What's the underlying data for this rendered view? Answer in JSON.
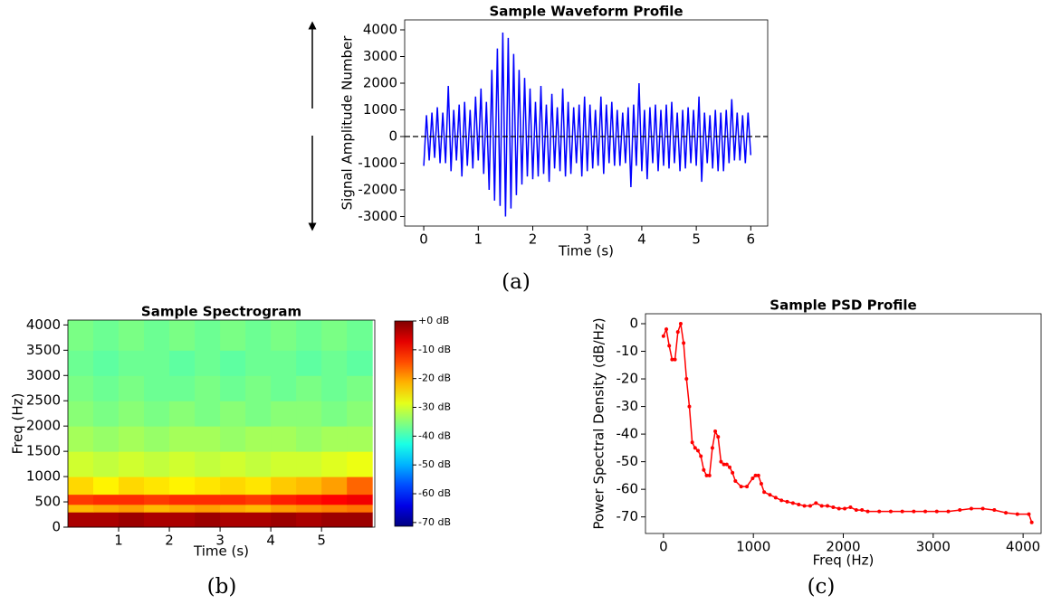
{
  "chart_data": [
    {
      "type": "line",
      "title": "Sample Waveform Profile",
      "xlabel": "Time (s)",
      "ylabel": "Signal Amplitude Number",
      "caption": "(a)",
      "color": "#0000ff",
      "reference_line": 0,
      "x": [
        0,
        0.05,
        0.1,
        0.15,
        0.2,
        0.25,
        0.3,
        0.35,
        0.4,
        0.45,
        0.5,
        0.55,
        0.6,
        0.65,
        0.7,
        0.75,
        0.8,
        0.85,
        0.9,
        0.95,
        1.0,
        1.05,
        1.1,
        1.15,
        1.2,
        1.25,
        1.3,
        1.35,
        1.4,
        1.45,
        1.5,
        1.55,
        1.6,
        1.65,
        1.7,
        1.75,
        1.8,
        1.85,
        1.9,
        1.95,
        2.0,
        2.05,
        2.1,
        2.15,
        2.2,
        2.25,
        2.3,
        2.35,
        2.4,
        2.45,
        2.5,
        2.55,
        2.6,
        2.65,
        2.7,
        2.75,
        2.8,
        2.85,
        2.9,
        2.95,
        3.0,
        3.05,
        3.1,
        3.15,
        3.2,
        3.25,
        3.3,
        3.35,
        3.4,
        3.45,
        3.5,
        3.55,
        3.6,
        3.65,
        3.7,
        3.75,
        3.8,
        3.85,
        3.9,
        3.95,
        4.0,
        4.05,
        4.1,
        4.15,
        4.2,
        4.25,
        4.3,
        4.35,
        4.4,
        4.45,
        4.5,
        4.55,
        4.6,
        4.65,
        4.7,
        4.75,
        4.8,
        4.85,
        4.9,
        4.95,
        5.0,
        5.05,
        5.1,
        5.15,
        5.2,
        5.25,
        5.3,
        5.35,
        5.4,
        5.45,
        5.5,
        5.55,
        5.6,
        5.65,
        5.7,
        5.75,
        5.8,
        5.85,
        5.9,
        5.95,
        6.0
      ],
      "values": [
        -1100,
        800,
        -900,
        900,
        -800,
        1100,
        -1000,
        900,
        -1000,
        1900,
        -1300,
        1000,
        -900,
        1200,
        -1500,
        1300,
        -1100,
        1000,
        -1200,
        1500,
        -900,
        1800,
        -1400,
        1300,
        -2000,
        2500,
        -2400,
        3300,
        -2600,
        3900,
        -3000,
        3700,
        -2700,
        3100,
        -2200,
        2500,
        -1800,
        2200,
        -1500,
        1800,
        -1600,
        1300,
        -1500,
        1900,
        -1400,
        1200,
        -1700,
        1600,
        -1200,
        1100,
        -1300,
        1800,
        -1500,
        1300,
        -1400,
        1100,
        -1000,
        1200,
        -1500,
        1500,
        -1300,
        1200,
        -1200,
        1000,
        -1100,
        1500,
        -1400,
        1200,
        -1000,
        1300,
        -1100,
        1000,
        -1100,
        900,
        -1000,
        1100,
        -1900,
        1200,
        -1100,
        2000,
        -1300,
        1000,
        -1600,
        1100,
        -1000,
        1200,
        -1300,
        1000,
        -1100,
        1200,
        -1200,
        1300,
        -1000,
        900,
        -1300,
        1000,
        -1200,
        1100,
        -1000,
        1000,
        -1100,
        1500,
        -1700,
        900,
        -1000,
        800,
        -1200,
        1000,
        -1300,
        900,
        -1300,
        1000,
        -1000,
        1400,
        -900,
        900,
        -900,
        800,
        -1000,
        900,
        -700
      ],
      "xlim": [
        -0.35,
        6.31
      ],
      "xticks": [
        0,
        1,
        2,
        3,
        4,
        5,
        6
      ],
      "ylim": [
        -3356,
        4373
      ],
      "yticks": [
        -3000,
        -2000,
        -1000,
        0,
        1000,
        2000,
        3000,
        4000
      ]
    },
    {
      "type": "heatmap",
      "title": "Sample Spectrogram",
      "xlabel": "Time (s)",
      "ylabel": "Freq (Hz)",
      "caption": "(b)",
      "x_bins": [
        0,
        0.5,
        1,
        1.5,
        2,
        2.5,
        3,
        3.5,
        4,
        4.5,
        5,
        5.5,
        6
      ],
      "y_bins": [
        0,
        300,
        450,
        650,
        1000,
        1500,
        2000,
        2500,
        3000,
        3500,
        4096
      ],
      "values": [
        [
          -3,
          -3,
          -2,
          -3,
          -3,
          -2,
          -3,
          -3,
          -2,
          -3,
          -2,
          -2
        ],
        [
          -22,
          -21,
          -20,
          -22,
          -21,
          -20,
          -21,
          -22,
          -20,
          -19,
          -18,
          -17
        ],
        [
          -13,
          -12,
          -12,
          -13,
          -12,
          -12,
          -12,
          -13,
          -11,
          -10,
          -9,
          -8
        ],
        [
          -24,
          -26,
          -24,
          -25,
          -26,
          -25,
          -24,
          -25,
          -23,
          -22,
          -20,
          -16
        ],
        [
          -30,
          -31,
          -30,
          -31,
          -30,
          -31,
          -30,
          -31,
          -30,
          -30,
          -29,
          -28
        ],
        [
          -33,
          -34,
          -33,
          -34,
          -33,
          -33,
          -34,
          -33,
          -33,
          -34,
          -33,
          -33
        ],
        [
          -35,
          -36,
          -35,
          -36,
          -35,
          -36,
          -35,
          -36,
          -35,
          -35,
          -36,
          -35
        ],
        [
          -36,
          -37,
          -36,
          -37,
          -37,
          -36,
          -37,
          -36,
          -37,
          -36,
          -37,
          -36
        ],
        [
          -37,
          -38,
          -37,
          -37,
          -38,
          -37,
          -38,
          -37,
          -37,
          -38,
          -37,
          -38
        ],
        [
          -36,
          -37,
          -36,
          -37,
          -36,
          -37,
          -36,
          -37,
          -36,
          -37,
          -36,
          -37
        ]
      ],
      "clim": [
        -71.3,
        0
      ],
      "colorbar_ticks": [
        {
          "value": 0,
          "label": "+0 dB"
        },
        {
          "value": -10,
          "label": "-10 dB"
        },
        {
          "value": -20,
          "label": "-20 dB"
        },
        {
          "value": -30,
          "label": "-30 dB"
        },
        {
          "value": -40,
          "label": "-40 dB"
        },
        {
          "value": -50,
          "label": "-50 dB"
        },
        {
          "value": -60,
          "label": "-60 dB"
        },
        {
          "value": -70,
          "label": "-70 dB"
        }
      ],
      "xlim": [
        0,
        6.05
      ],
      "xticks": [
        1,
        2,
        3,
        4,
        5
      ],
      "ylim": [
        0,
        4096
      ],
      "yticks": [
        0,
        500,
        1000,
        1500,
        2000,
        2500,
        3000,
        3500,
        4000
      ]
    },
    {
      "type": "line",
      "title": "Sample PSD Profile",
      "xlabel": "Freq (Hz)",
      "ylabel": "Power Spectral Density (dB/Hz)",
      "caption": "(c)",
      "color": "#ff0000",
      "markers": true,
      "x": [
        0,
        32,
        64,
        96,
        128,
        160,
        192,
        224,
        256,
        288,
        320,
        352,
        384,
        416,
        448,
        480,
        512,
        544,
        576,
        608,
        640,
        672,
        704,
        736,
        768,
        800,
        864,
        928,
        992,
        1024,
        1056,
        1088,
        1120,
        1184,
        1248,
        1312,
        1376,
        1440,
        1504,
        1568,
        1632,
        1696,
        1760,
        1824,
        1888,
        1952,
        2016,
        2080,
        2144,
        2208,
        2272,
        2400,
        2528,
        2656,
        2784,
        2912,
        3040,
        3168,
        3296,
        3424,
        3552,
        3680,
        3808,
        3936,
        4064,
        4096
      ],
      "values": [
        -4.5,
        -2,
        -8,
        -13,
        -13,
        -3,
        0,
        -7,
        -20,
        -30,
        -43,
        -45,
        -46,
        -48,
        -53,
        -55,
        -55,
        -45,
        -39,
        -41,
        -50,
        -51,
        -51,
        -52,
        -54,
        -57,
        -59,
        -59,
        -56,
        -55,
        -55,
        -58,
        -61,
        -62,
        -63,
        -64,
        -64.5,
        -65,
        -65.5,
        -66,
        -66,
        -65,
        -66,
        -66,
        -66.5,
        -67,
        -67,
        -66.5,
        -67.5,
        -67.5,
        -68,
        -68,
        -68,
        -68,
        -68,
        -68,
        -68,
        -68,
        -67.5,
        -67,
        -67,
        -67.5,
        -68.5,
        -69,
        -69,
        -72
      ],
      "xlim": [
        -200,
        4200
      ],
      "xticks": [
        0,
        1000,
        2000,
        3000,
        4000
      ],
      "ylim": [
        -76,
        3.6
      ],
      "yticks": [
        -70,
        -60,
        -50,
        -40,
        -30,
        -20,
        -10,
        0
      ]
    }
  ]
}
